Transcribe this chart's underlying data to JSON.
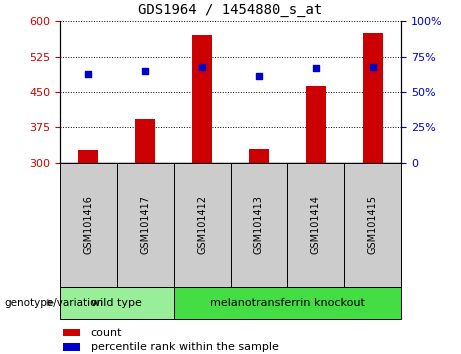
{
  "title": "GDS1964 / 1454880_s_at",
  "samples": [
    "GSM101416",
    "GSM101417",
    "GSM101412",
    "GSM101413",
    "GSM101414",
    "GSM101415"
  ],
  "counts": [
    328,
    393,
    570,
    330,
    462,
    575
  ],
  "percentile_ranks": [
    63,
    65,
    68,
    61,
    67,
    68
  ],
  "ylim_left": [
    300,
    600
  ],
  "ylim_right": [
    0,
    100
  ],
  "yticks_left": [
    300,
    375,
    450,
    525,
    600
  ],
  "yticks_right": [
    0,
    25,
    50,
    75,
    100
  ],
  "bar_color": "#cc0000",
  "dot_color": "#0000cc",
  "bar_width": 0.35,
  "groups": [
    {
      "label": "wild type",
      "indices": [
        0,
        1
      ],
      "color": "#99ee99"
    },
    {
      "label": "melanotransferrin knockout",
      "indices": [
        2,
        3,
        4,
        5
      ],
      "color": "#44dd44"
    }
  ],
  "group_label": "genotype/variation",
  "legend_count_label": "count",
  "legend_pct_label": "percentile rank within the sample",
  "left_tick_color": "#cc0000",
  "right_tick_color": "#0000cc",
  "grid_linestyle": "dotted",
  "grid_color": "black",
  "table_bg_color": "#cccccc",
  "plot_bg_color": "white"
}
